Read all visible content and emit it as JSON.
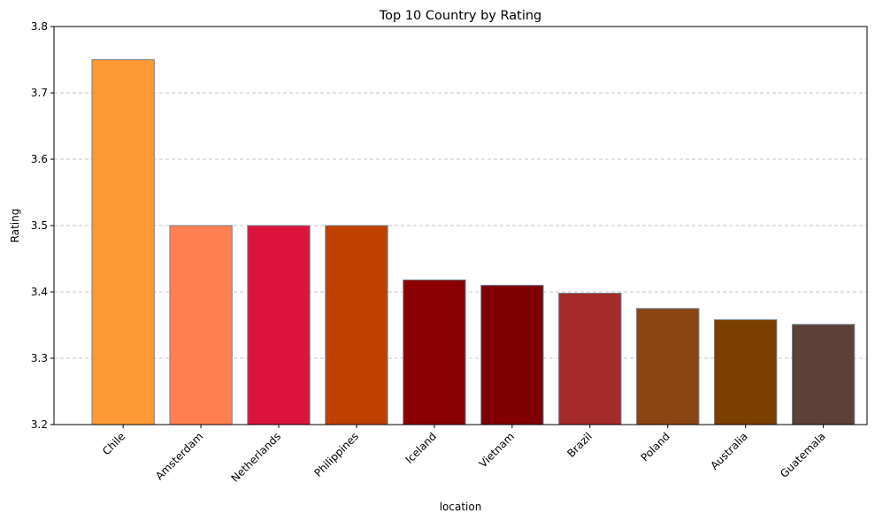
{
  "chart_data": {
    "type": "bar",
    "title": "Top 10 Country by Rating",
    "xlabel": "location",
    "ylabel": "Rating",
    "categories": [
      "Chile",
      "Amsterdam",
      "Netherlands",
      "Philippines",
      "Iceland",
      "Vietnam",
      "Brazil",
      "Poland",
      "Australia",
      "Guatemala"
    ],
    "values": [
      3.75,
      3.5,
      3.5,
      3.5,
      3.418,
      3.41,
      3.398,
      3.375,
      3.358,
      3.351
    ],
    "colors": [
      "#ff9933",
      "#ff7f50",
      "#dc143c",
      "#c04000",
      "#8b0000",
      "#800000",
      "#a52a2a",
      "#8b4513",
      "#7b3f00",
      "#5d4037"
    ],
    "bar_edge_color": "#708090",
    "ylim": [
      3.2,
      3.8
    ],
    "yticks": [
      "3.2",
      "3.3",
      "3.4",
      "3.5",
      "3.6",
      "3.7",
      "3.8"
    ],
    "grid": "y-dashed",
    "legend": "none"
  }
}
